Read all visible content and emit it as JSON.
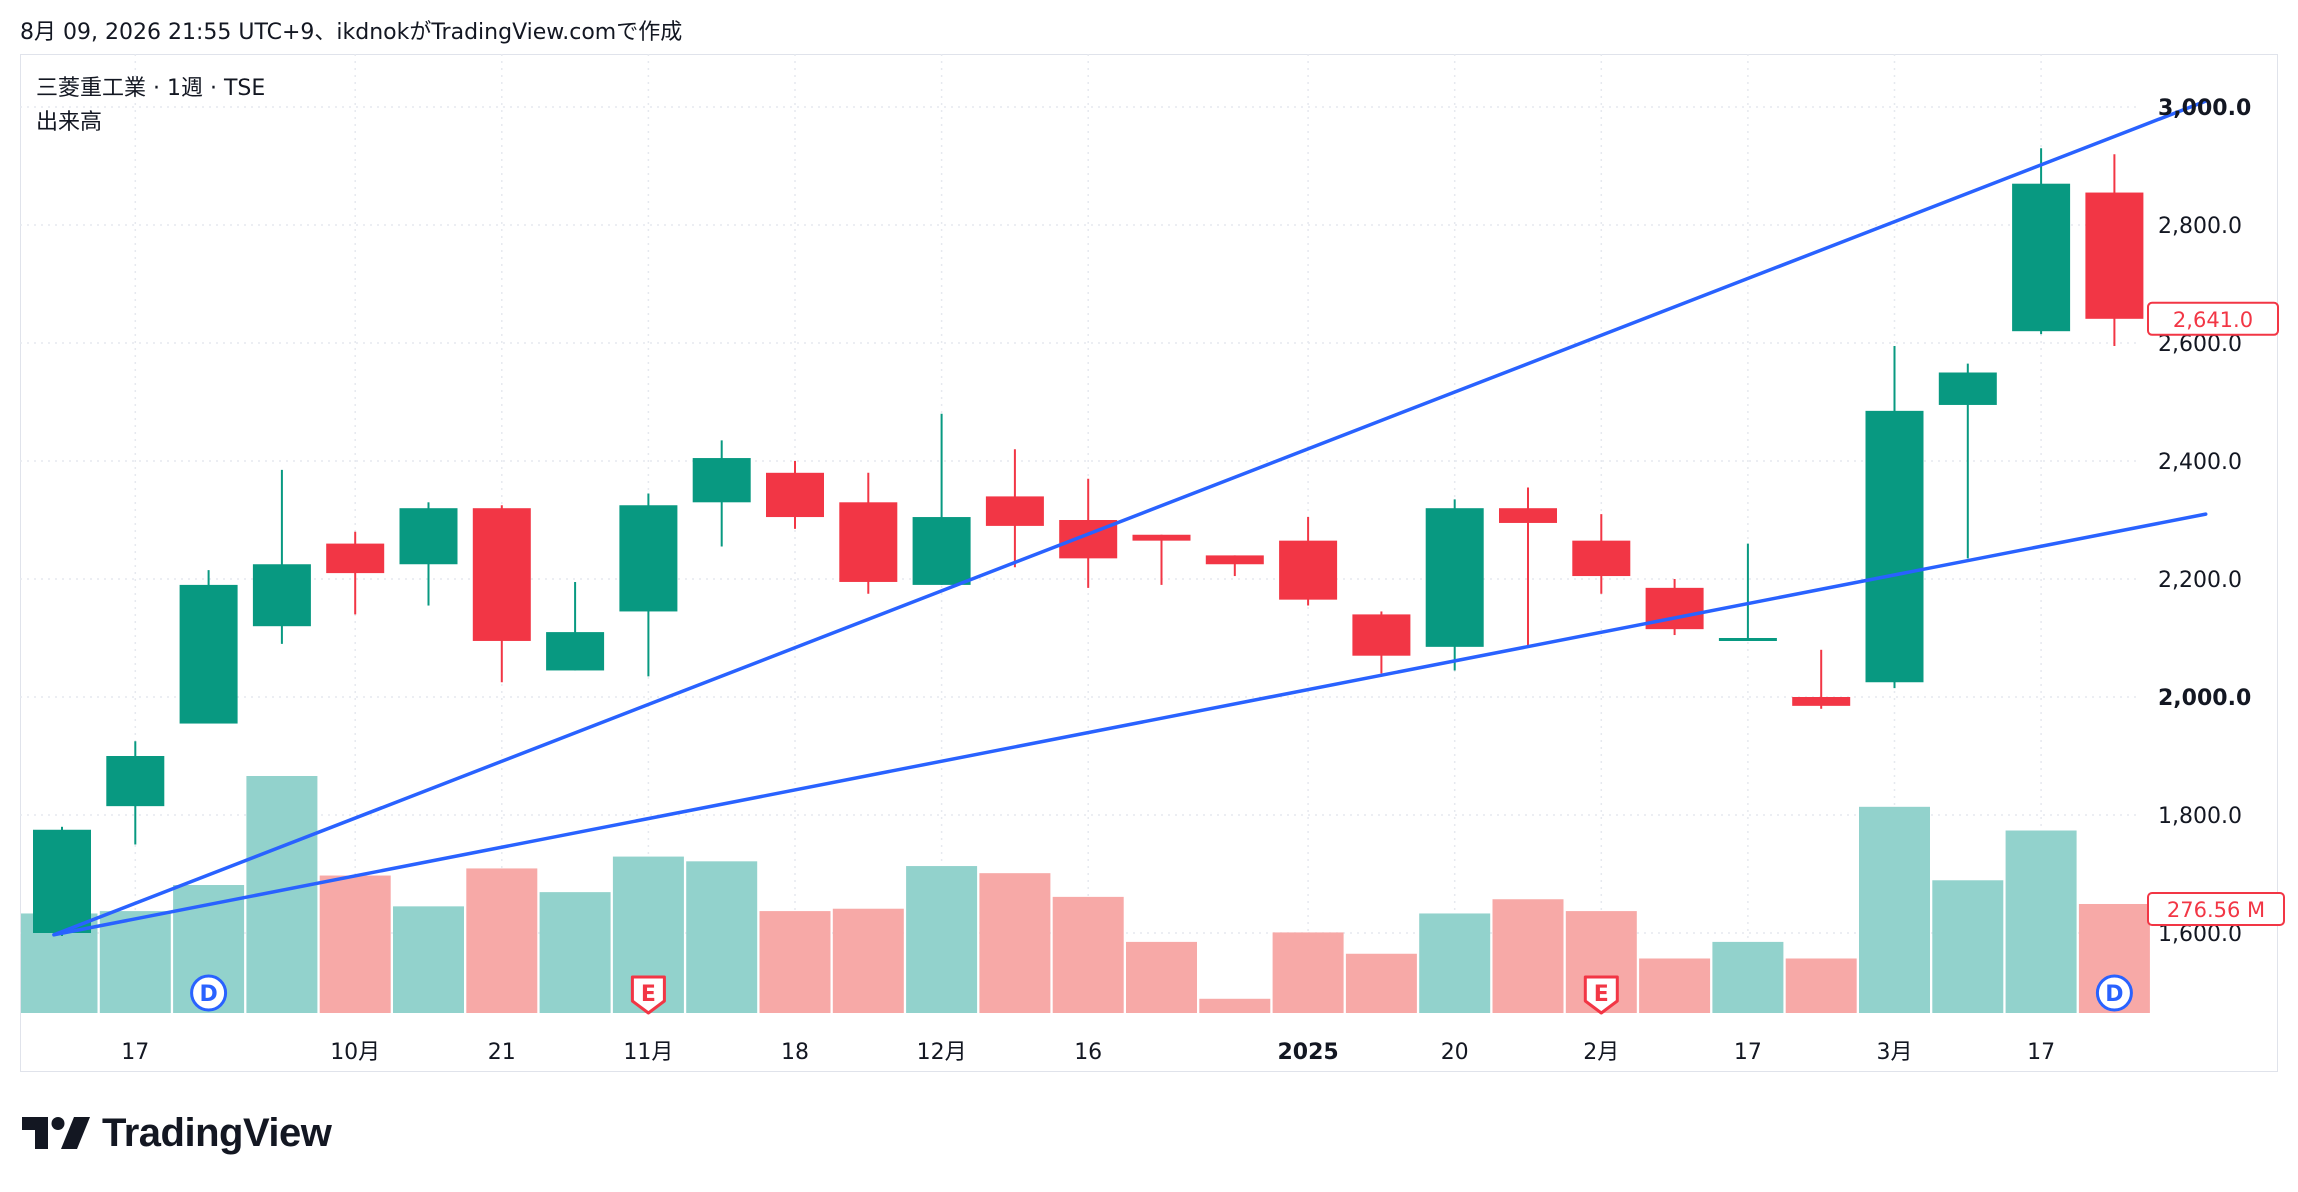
{
  "header": {
    "text": "8月 09, 2026 21:55 UTC+9、ikdnokがTradingView.comで作成"
  },
  "legend": {
    "title": "三菱重工業 · 1週 · TSE",
    "volume_label": "出来高"
  },
  "brand": {
    "name": "TradingView",
    "logo_icon": "tradingview-logo-icon"
  },
  "colors": {
    "up": "#089981",
    "down": "#f23645",
    "up_volume": "#92d2cc",
    "down_volume": "#f7a9a7",
    "trendline": "#2962ff",
    "badge_d": "#2962ff",
    "badge_e": "#f23645"
  },
  "chart_data": {
    "type": "candlestick",
    "symbol": "三菱重工業",
    "interval": "1週",
    "exchange": "TSE",
    "price_axis": {
      "ticks": [
        1600,
        1800,
        2000,
        2200,
        2400,
        2600,
        2800,
        3000
      ],
      "tick_labels": [
        "1,600.0",
        "1,800.0",
        "2,000.0",
        "2,200.0",
        "2,400.0",
        "2,600.0",
        "2,800.0",
        "3,000.0"
      ],
      "bold_ticks": [
        "2,000.0",
        "3,000.0"
      ]
    },
    "last_price": 2641,
    "last_price_label": "2,641.0",
    "last_volume_label": "276.56 M",
    "x_axis_labels": [
      {
        "text": "17",
        "bar": 1,
        "bold": false
      },
      {
        "text": "10月",
        "bar": 4,
        "bold": false
      },
      {
        "text": "21",
        "bar": 6,
        "bold": false
      },
      {
        "text": "11月",
        "bar": 8,
        "bold": false
      },
      {
        "text": "18",
        "bar": 10,
        "bold": false
      },
      {
        "text": "12月",
        "bar": 12,
        "bold": false
      },
      {
        "text": "16",
        "bar": 14,
        "bold": false
      },
      {
        "text": "2025",
        "bar": 17,
        "bold": true
      },
      {
        "text": "20",
        "bar": 19,
        "bold": false
      },
      {
        "text": "2月",
        "bar": 21,
        "bold": false
      },
      {
        "text": "17",
        "bar": 23,
        "bold": false
      },
      {
        "text": "3月",
        "bar": 25,
        "bold": false
      },
      {
        "text": "17",
        "bar": 27,
        "bold": false
      }
    ],
    "candles": [
      {
        "o": 1600,
        "h": 1780,
        "l": 1595,
        "c": 1775
      },
      {
        "o": 1815,
        "h": 1925,
        "l": 1750,
        "c": 1900
      },
      {
        "o": 1955,
        "h": 2215,
        "l": 1955,
        "c": 2190
      },
      {
        "o": 2120,
        "h": 2385,
        "l": 2090,
        "c": 2225
      },
      {
        "o": 2260,
        "h": 2280,
        "l": 2140,
        "c": 2210
      },
      {
        "o": 2225,
        "h": 2330,
        "l": 2155,
        "c": 2320
      },
      {
        "o": 2320,
        "h": 2325,
        "l": 2025,
        "c": 2095
      },
      {
        "o": 2045,
        "h": 2195,
        "l": 2045,
        "c": 2110
      },
      {
        "o": 2145,
        "h": 2345,
        "l": 2035,
        "c": 2325
      },
      {
        "o": 2330,
        "h": 2435,
        "l": 2255,
        "c": 2405
      },
      {
        "o": 2380,
        "h": 2400,
        "l": 2285,
        "c": 2305
      },
      {
        "o": 2330,
        "h": 2380,
        "l": 2175,
        "c": 2195
      },
      {
        "o": 2190,
        "h": 2480,
        "l": 2190,
        "c": 2305
      },
      {
        "o": 2340,
        "h": 2420,
        "l": 2220,
        "c": 2290
      },
      {
        "o": 2300,
        "h": 2370,
        "l": 2185,
        "c": 2235
      },
      {
        "o": 2275,
        "h": 2275,
        "l": 2190,
        "c": 2265
      },
      {
        "o": 2240,
        "h": 2240,
        "l": 2205,
        "c": 2225
      },
      {
        "o": 2265,
        "h": 2305,
        "l": 2155,
        "c": 2165
      },
      {
        "o": 2140,
        "h": 2145,
        "l": 2040,
        "c": 2070
      },
      {
        "o": 2085,
        "h": 2335,
        "l": 2045,
        "c": 2320
      },
      {
        "o": 2320,
        "h": 2355,
        "l": 2085,
        "c": 2295
      },
      {
        "o": 2265,
        "h": 2310,
        "l": 2175,
        "c": 2205
      },
      {
        "o": 2185,
        "h": 2200,
        "l": 2105,
        "c": 2115
      },
      {
        "o": 2095,
        "h": 2260,
        "l": 2095,
        "c": 2100
      },
      {
        "o": 2000,
        "h": 2080,
        "l": 1980,
        "c": 1985
      },
      {
        "o": 2025,
        "h": 2595,
        "l": 2015,
        "c": 2485
      },
      {
        "o": 2495,
        "h": 2565,
        "l": 2235,
        "c": 2550
      },
      {
        "o": 2620,
        "h": 2930,
        "l": 2615,
        "c": 2870
      },
      {
        "o": 2855,
        "h": 2920,
        "l": 2595,
        "c": 2641
      }
    ],
    "volume_bar_top_fraction": [
      0.42,
      0.43,
      0.54,
      1.0,
      0.58,
      0.45,
      0.61,
      0.51,
      0.66,
      0.64,
      0.43,
      0.44,
      0.62,
      0.59,
      0.49,
      0.3,
      0.06,
      0.34,
      0.25,
      0.42,
      0.48,
      0.43,
      0.23,
      0.3,
      0.23,
      0.87,
      0.56,
      0.77,
      0.46
    ],
    "events": [
      {
        "bar": 2,
        "type": "dividend",
        "label": "D"
      },
      {
        "bar": 8,
        "type": "earnings",
        "label": "E"
      },
      {
        "bar": 21,
        "type": "earnings",
        "label": "E"
      },
      {
        "bar": 28,
        "type": "dividend",
        "label": "D"
      }
    ],
    "trendlines": [
      {
        "from": {
          "bar": 0.5,
          "price": 1597
        },
        "to": {
          "bar": 29.5,
          "price": 3010
        }
      },
      {
        "from": {
          "bar": 0.5,
          "price": 1597
        },
        "to": {
          "bar": 29.5,
          "price": 2310
        }
      }
    ]
  }
}
